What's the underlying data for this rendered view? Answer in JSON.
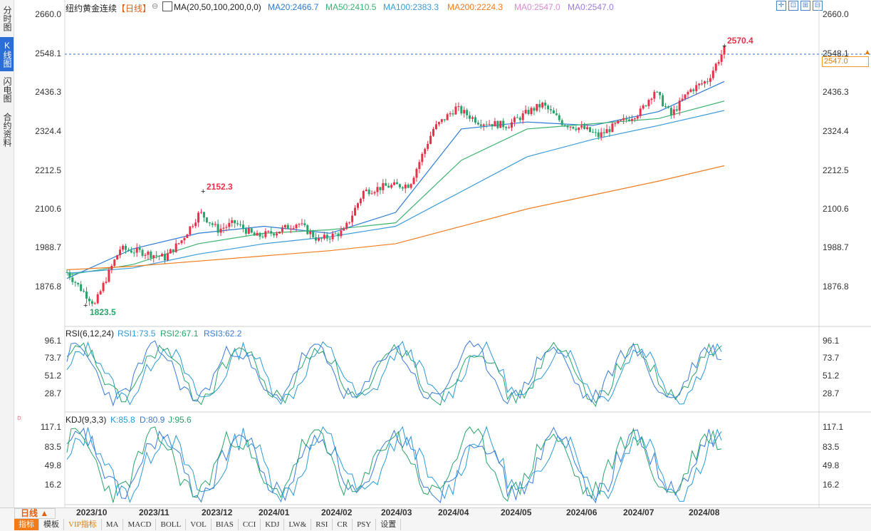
{
  "sidebar": {
    "tabs": [
      {
        "label": "分时图",
        "active": false
      },
      {
        "label": "K线图",
        "active": true
      },
      {
        "label": "闪电图",
        "active": false
      },
      {
        "label": "合约资料",
        "active": false
      }
    ]
  },
  "header": {
    "instrument": "纽约黄金连续",
    "period": "【日线】",
    "ma_params": "MA(20,50,100,200,0,0)",
    "ma20": "MA20:2466.7",
    "ma50": "MA50:2410.5",
    "ma100": "MA100:2383.3",
    "ma200": "MA200:2224.3",
    "ma0a": "MA0:2547.0",
    "ma0b": "MA0:2547.0"
  },
  "price_axis": {
    "labels_left": [
      "2660.0",
      "2548.1",
      "2436.3",
      "2324.4",
      "2212.5",
      "2100.6",
      "1988.7",
      "1876.8"
    ],
    "labels_right": [
      "2660.0",
      "2548.1",
      "2436.3",
      "2324.4",
      "2212.5",
      "2100.6",
      "1988.7",
      "1876.8"
    ],
    "current_price": "2547.0",
    "high_label": "2570.4",
    "mid_high_label": "2152.3",
    "low_label": "1823.5"
  },
  "rsi": {
    "title": "RSI(6,12,24)",
    "rsi1": "RSI1:73.5",
    "rsi2": "RSI2:67.1",
    "rsi3": "RSI3:62.2",
    "labels": [
      "96.1",
      "73.7",
      "51.2",
      "28.7"
    ]
  },
  "kdj": {
    "title": "KDJ(9,3,3)",
    "k": "K:85.8",
    "d": "D:80.9",
    "j": "J:95.6",
    "labels": [
      "117.1",
      "83.5",
      "49.8",
      "16.2"
    ]
  },
  "months": [
    "2023/10",
    "2023/11",
    "2023/12",
    "2024/01",
    "2024/02",
    "2024/03",
    "2024/04",
    "2024/05",
    "2024/06",
    "2024/07",
    "2024/08"
  ],
  "bottom": {
    "period_button": "日线 ▲",
    "tabs": [
      "指标",
      "模板",
      "VIP指标",
      "MA",
      "MACD",
      "BOLL",
      "VOL",
      "BIAS",
      "CCI",
      "KDJ",
      "LW&",
      "RSI",
      "CR",
      "PSY",
      "设置"
    ]
  },
  "colors": {
    "up": "#e8304a",
    "down": "#2aa36b",
    "ma20": "#2b7bd6",
    "ma50": "#3cb371",
    "ma100": "#3a9bd9",
    "ma200": "#f07c1e",
    "accent": "#f47a16"
  },
  "chart_data": {
    "type": "line",
    "title": "纽约黄金连续",
    "x": [
      "2023/10",
      "2023/11",
      "2023/12",
      "2024/01",
      "2024/02",
      "2024/03",
      "2024/04",
      "2024/05",
      "2024/06",
      "2024/07",
      "2024/08"
    ],
    "series": [
      {
        "name": "MA20",
        "values": [
          1900,
          1985,
          2030,
          2050,
          2030,
          2090,
          2330,
          2350,
          2340,
          2380,
          2466.7
        ]
      },
      {
        "name": "MA50",
        "values": [
          1910,
          1940,
          2000,
          2030,
          2040,
          2060,
          2240,
          2330,
          2345,
          2360,
          2410.5
        ]
      },
      {
        "name": "MA100",
        "values": [
          1915,
          1930,
          1970,
          2000,
          2020,
          2050,
          2150,
          2250,
          2300,
          2340,
          2383.3
        ]
      },
      {
        "name": "MA200",
        "values": [
          1925,
          1935,
          1950,
          1965,
          1980,
          2000,
          2050,
          2100,
          2140,
          2180,
          2224.3
        ]
      }
    ],
    "ylim": [
      1800,
      2680
    ]
  }
}
